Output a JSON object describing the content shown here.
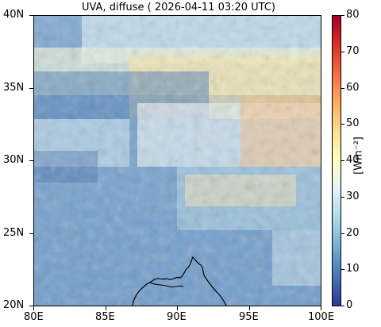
{
  "title": "UVA, diffuse ( 2026-04-11 03:20 UTC)",
  "map": {
    "lon_range": [
      80,
      100
    ],
    "lat_range": [
      20,
      40
    ],
    "x_ticks": [
      {
        "label": "80E",
        "value": 80
      },
      {
        "label": "85E",
        "value": 85
      },
      {
        "label": "90E",
        "value": 90
      },
      {
        "label": "95E",
        "value": 95
      },
      {
        "label": "100E",
        "value": 100
      }
    ],
    "y_ticks": [
      {
        "label": "40N",
        "value": 40
      },
      {
        "label": "35N",
        "value": 35
      },
      {
        "label": "30N",
        "value": 30
      },
      {
        "label": "25N",
        "value": 25
      },
      {
        "label": "20N",
        "value": 20
      }
    ],
    "coastline_color": "#000000"
  },
  "colorbar": {
    "unit_label": "[Wm⁻²]",
    "range": [
      0,
      80
    ],
    "ticks": [
      {
        "label": "80",
        "value": 80
      },
      {
        "label": "70",
        "value": 70
      },
      {
        "label": "60",
        "value": 60
      },
      {
        "label": "50",
        "value": 50
      },
      {
        "label": "40",
        "value": 40
      },
      {
        "label": "30",
        "value": 30
      },
      {
        "label": "20",
        "value": 20
      },
      {
        "label": "10",
        "value": 10
      },
      {
        "label": "0",
        "value": 0
      }
    ],
    "colormap": [
      "#313695",
      "#4575b4",
      "#74add1",
      "#abd9e9",
      "#e0f3f8",
      "#ffffbf",
      "#fee090",
      "#fdae61",
      "#f46d43",
      "#d73027",
      "#a50026"
    ]
  }
}
